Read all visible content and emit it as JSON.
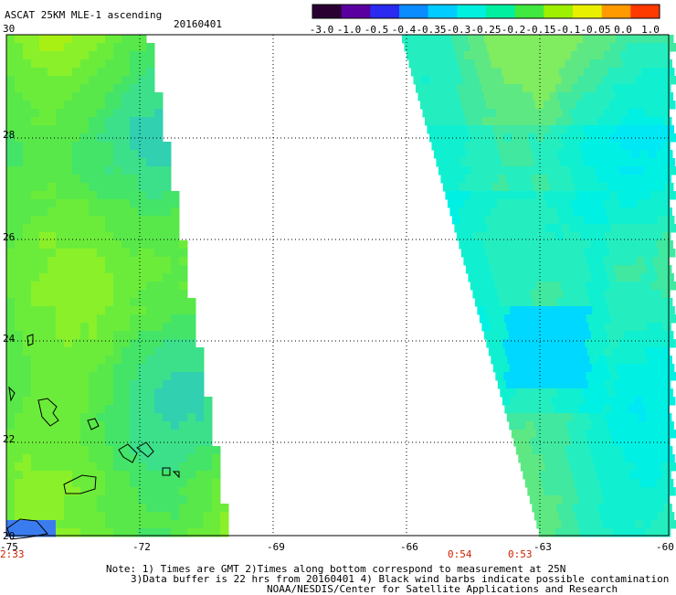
{
  "header": {
    "title": "ASCAT 25KM MLE-1 ascending",
    "date": "20160401"
  },
  "colorbar": {
    "colors": [
      "#2a0033",
      "#5a00a0",
      "#2a2af0",
      "#0a8cff",
      "#00ccff",
      "#00f0e0",
      "#00f0a0",
      "#40e840",
      "#9ef000",
      "#e8f000",
      "#ff9a00",
      "#ff3a00"
    ],
    "labels": [
      "-3.0",
      "-1.0",
      "-0.5",
      "-0.4",
      "-0.35",
      "-0.3",
      "-0.25",
      "-0.2",
      "-0.15",
      "-0.1",
      "-0.05",
      "0.0",
      "1.0"
    ]
  },
  "map": {
    "lat_labels": [
      "30",
      "28",
      "26",
      "24",
      "22",
      "20"
    ],
    "lon_labels": [
      "-75",
      "-72",
      "-69",
      "-66",
      "-63",
      "-60"
    ],
    "time_labels": [
      "2:33",
      "0:54",
      "0:53"
    ]
  },
  "footer": {
    "note1": "Note: 1) Times are GMT 2)Times along bottom correspond to measurement at 25N",
    "note2": "3)Data buffer is 22 hrs from 20160401 4) Black wind barbs indicate possible contamination",
    "credit": "NOAA/NESDIS/Center for Satellite Applications and Research"
  }
}
